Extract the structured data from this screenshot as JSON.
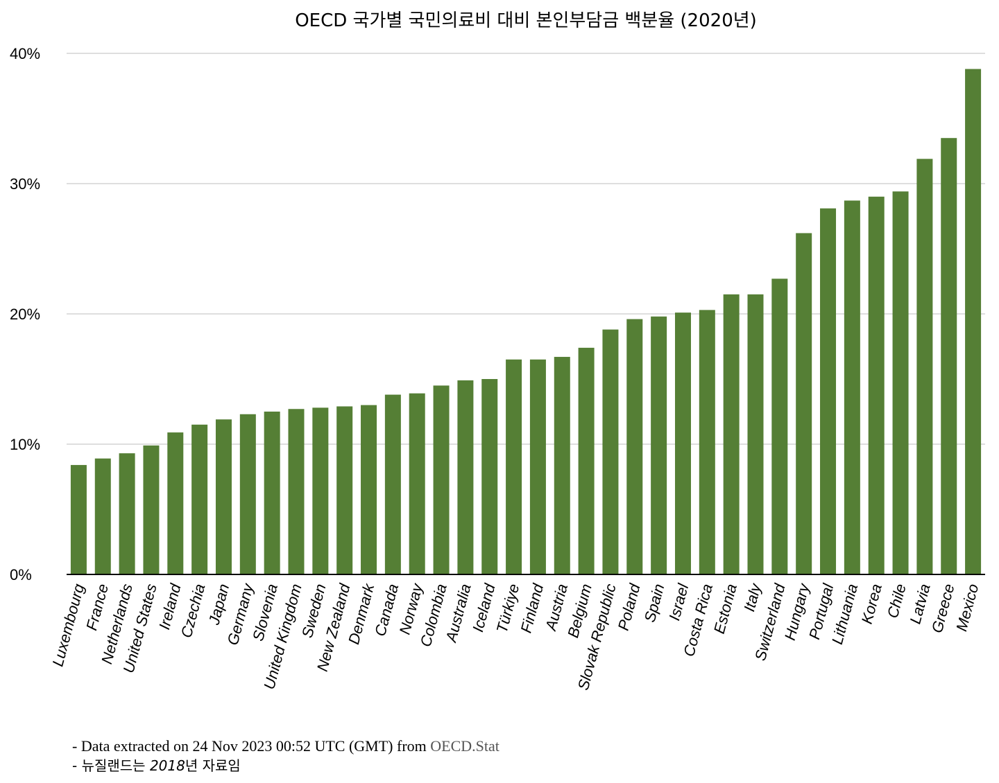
{
  "chart_data": {
    "type": "bar",
    "title": "OECD 국가별 국민의료비 대비 본인부담금 백분율 (2020년)",
    "xlabel": "",
    "ylabel": "",
    "ylim": [
      0,
      40
    ],
    "yticks": [
      "0%",
      "10%",
      "20%",
      "30%",
      "40%"
    ],
    "grid": true,
    "legend": "none",
    "bar_color": "#557f35",
    "categories": [
      "Luxembourg",
      "France",
      "Netherlands",
      "United States",
      "Ireland",
      "Czechia",
      "Japan",
      "Germany",
      "Slovenia",
      "United Kingdom",
      "Sweden",
      "New Zealand",
      "Denmark",
      "Canada",
      "Norway",
      "Colombia",
      "Australia",
      "Iceland",
      "Türkiye",
      "Finland",
      "Austria",
      "Belgium",
      "Slovak Republic",
      "Poland",
      "Spain",
      "Israel",
      "Costa Rica",
      "Estonia",
      "Italy",
      "Switzerland",
      "Hungary",
      "Portugal",
      "Lithuania",
      "Korea",
      "Chile",
      "Latvia",
      "Greece",
      "Mexico"
    ],
    "values": [
      8.4,
      8.9,
      9.3,
      9.9,
      10.9,
      11.5,
      11.9,
      12.3,
      12.5,
      12.7,
      12.8,
      12.9,
      13.0,
      13.8,
      13.9,
      14.5,
      14.9,
      15.0,
      16.5,
      16.5,
      16.7,
      17.4,
      18.8,
      19.6,
      19.8,
      20.1,
      20.3,
      21.5,
      21.5,
      22.7,
      26.2,
      28.1,
      28.7,
      29.0,
      29.4,
      31.9,
      33.5,
      38.8
    ]
  },
  "notes": {
    "line1_prefix": "- Data extracted on 24 Nov 2023 00:52 UTC (GMT) from",
    "line1_source": "OECD.Stat",
    "line2_prefix": "- 뉴질랜드는",
    "line2_year": "2018",
    "line2_suffix": "년 자료임"
  }
}
